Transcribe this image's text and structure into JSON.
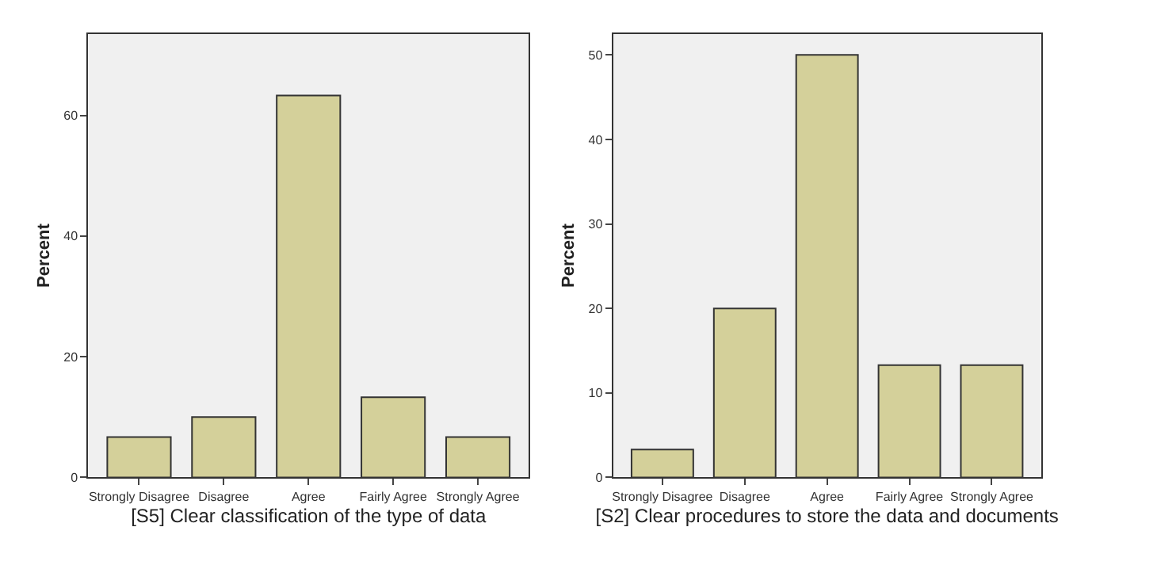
{
  "chart_data": [
    {
      "type": "bar",
      "xlabel": "[S5] Clear classification of the type of data",
      "ylabel": "Percent",
      "categories": [
        "Strongly Disagree",
        "Disagree",
        "Agree",
        "Fairly Agree",
        "Strongly Agree"
      ],
      "values": [
        6.7,
        10,
        63.3,
        13.3,
        6.7
      ],
      "color": "#d4d09a",
      "ylim": [
        0,
        73.5
      ],
      "yticks": [
        0,
        20,
        40,
        60
      ],
      "grid": false
    },
    {
      "type": "bar",
      "xlabel": "[S2] Clear procedures to store the data and documents",
      "ylabel": "Percent",
      "categories": [
        "Strongly Disagree",
        "Disagree",
        "Agree",
        "Fairly Agree",
        "Strongly Agree"
      ],
      "values": [
        3.3,
        20,
        50,
        13.3,
        13.3
      ],
      "color": "#d4d09a",
      "ylim": [
        0,
        52.5
      ],
      "yticks": [
        0,
        10,
        20,
        30,
        40,
        50
      ],
      "grid": false
    }
  ]
}
